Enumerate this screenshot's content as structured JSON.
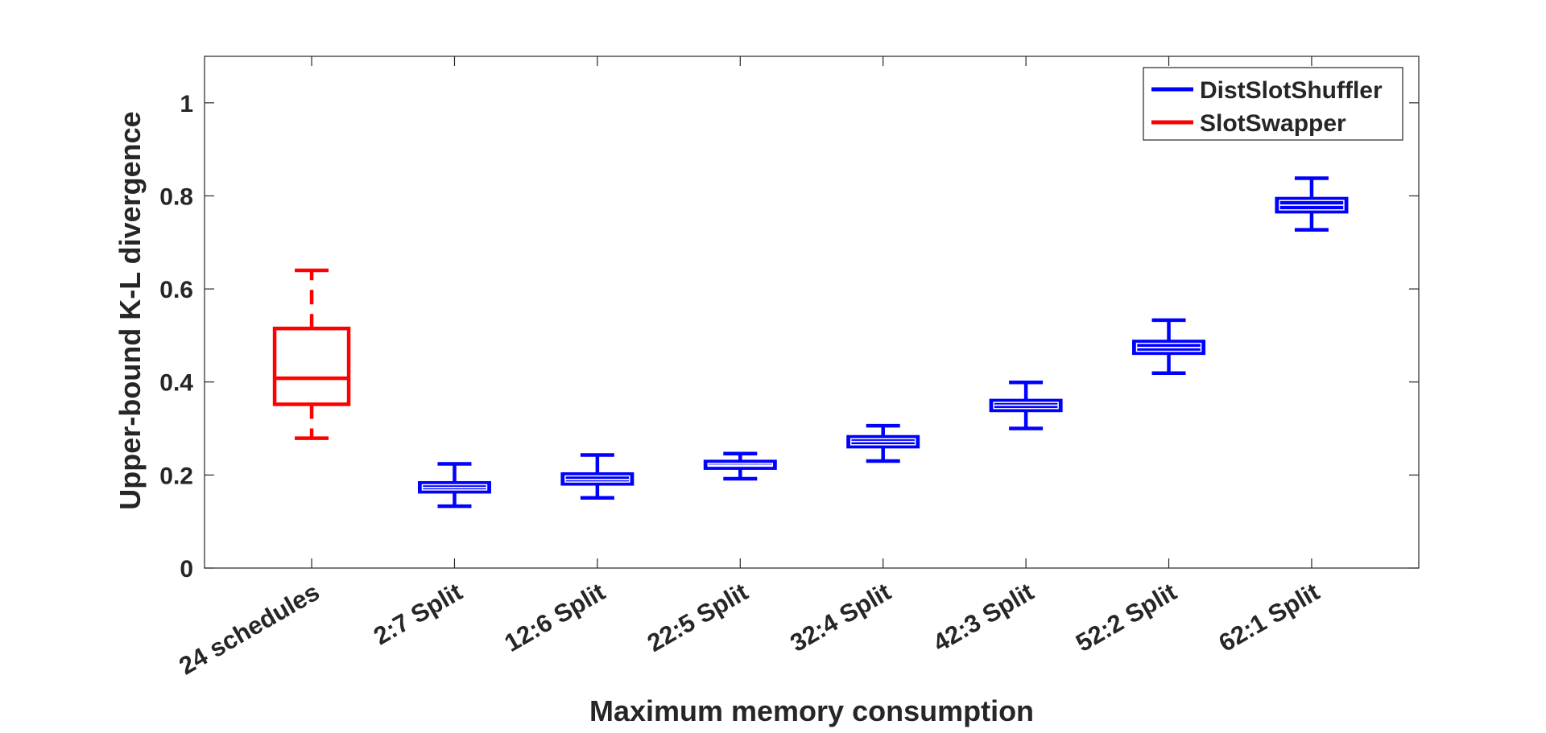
{
  "chart_data": {
    "type": "box",
    "xlabel": "Maximum memory consumption",
    "ylabel": "Upper-bound K-L divergence",
    "ylim": [
      0,
      1.1
    ],
    "yticks": [
      0,
      0.2,
      0.4,
      0.6,
      0.8,
      1
    ],
    "ytick_labels": [
      "0",
      "0.2",
      "0.4",
      "0.6",
      "0.8",
      "1"
    ],
    "grid": false,
    "legend_position": "top-right",
    "categories": [
      "24 schedules",
      "2:7 Split",
      "12:6 Split",
      "22:5 Split",
      "32:4 Split",
      "42:3 Split",
      "52:2 Split",
      "62:1 Split"
    ],
    "series": [
      {
        "name": "DistSlotShuffler",
        "color": "#0000ff",
        "boxes": [
          {
            "category": "2:7 Split",
            "whisker_low": 0.133,
            "q1": 0.161,
            "median": 0.173,
            "q3": 0.186,
            "whisker_high": 0.224
          },
          {
            "category": "12:6 Split",
            "whisker_low": 0.151,
            "q1": 0.178,
            "median": 0.19,
            "q3": 0.205,
            "whisker_high": 0.243
          },
          {
            "category": "22:5 Split",
            "whisker_low": 0.192,
            "q1": 0.212,
            "median": 0.221,
            "q3": 0.232,
            "whisker_high": 0.246
          },
          {
            "category": "32:4 Split",
            "whisker_low": 0.23,
            "q1": 0.258,
            "median": 0.272,
            "q3": 0.285,
            "whisker_high": 0.306
          },
          {
            "category": "42:3 Split",
            "whisker_low": 0.3,
            "q1": 0.336,
            "median": 0.35,
            "q3": 0.363,
            "whisker_high": 0.399
          },
          {
            "category": "52:2 Split",
            "whisker_low": 0.419,
            "q1": 0.459,
            "median": 0.474,
            "q3": 0.49,
            "whisker_high": 0.533
          },
          {
            "category": "62:1 Split",
            "whisker_low": 0.727,
            "q1": 0.763,
            "median": 0.78,
            "q3": 0.797,
            "whisker_high": 0.838
          }
        ]
      },
      {
        "name": "SlotSwapper",
        "color": "#ff0000",
        "boxes": [
          {
            "category": "24 schedules",
            "whisker_low": 0.279,
            "q1": 0.352,
            "median": 0.408,
            "q3": 0.515,
            "whisker_high": 0.64
          }
        ]
      }
    ]
  }
}
